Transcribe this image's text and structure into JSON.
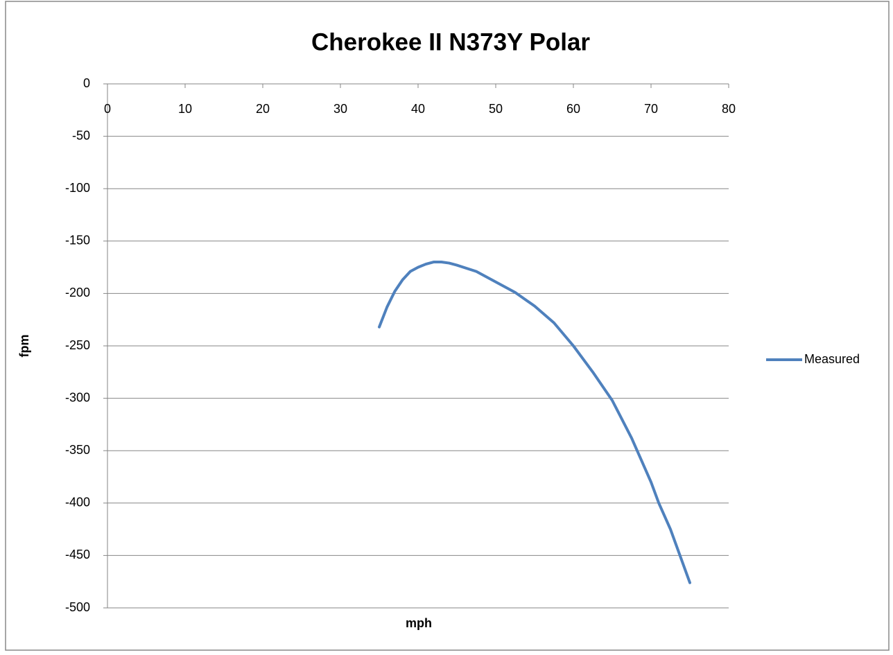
{
  "chart_data": {
    "type": "line",
    "title": "Cherokee II N373Y Polar",
    "x_label": "mph",
    "y_label": "fpm",
    "x": [
      35,
      36,
      37,
      38,
      39,
      40,
      41,
      42,
      43,
      44,
      45,
      47.5,
      50,
      52.5,
      55,
      57.5,
      60,
      62.5,
      65,
      67.5,
      70,
      71,
      72.5,
      75
    ],
    "series": [
      {
        "name": "Measured",
        "color": "#4f81bd",
        "values": [
          -232,
          -213,
          -198,
          -187,
          -179,
          -175,
          -172,
          -170,
          -170,
          -171,
          -173,
          -179,
          -189,
          -199,
          -212,
          -228,
          -250,
          -275,
          -302,
          -338,
          -380,
          -400,
          -425,
          -476
        ]
      }
    ],
    "xlim": [
      0,
      80
    ],
    "xticks": [
      0,
      10,
      20,
      30,
      40,
      50,
      60,
      70,
      80
    ],
    "ylim": [
      -500,
      0
    ],
    "yticks": [
      0,
      -50,
      -100,
      -150,
      -200,
      -250,
      -300,
      -350,
      -400,
      -450,
      -500
    ],
    "grid": true,
    "legend": "right"
  }
}
